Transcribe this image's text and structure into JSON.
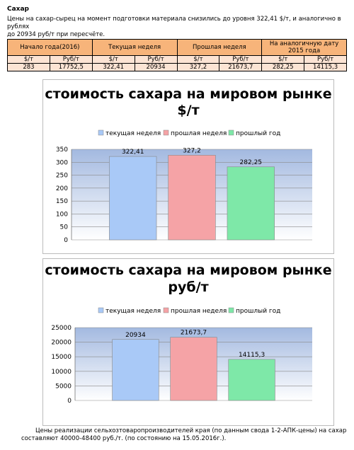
{
  "header": {
    "title": "Сахар",
    "lines": [
      "Цены на сахар-сырец на момент подготовки материала снизились до уровня 322,41 $/т, и аналогично в рублях",
      "до 20934 руб/т при пересчёте."
    ]
  },
  "table": {
    "header": [
      "Начало года(2016)",
      "Текущая неделя",
      "Прошлая неделя",
      "На аналогичную дату 2015 года"
    ],
    "subheader": [
      "$/т",
      "Руб/т",
      "$/т",
      "Руб/т",
      "$/т",
      "Руб/т",
      "$/т",
      "Руб/т"
    ],
    "rows": [
      [
        "283",
        "17752,5",
        "322,41",
        "20934",
        "327,2",
        "21673,7",
        "282,25",
        "14115,3"
      ]
    ]
  },
  "chart_data": [
    {
      "type": "bar",
      "title": "стоимость сахара на мировом рынке",
      "subtitle": "$/т",
      "series": [
        {
          "name": "текущая неделя",
          "color": "#a9c9f7",
          "values": [
            322.41
          ],
          "value_labels": [
            "322,41"
          ]
        },
        {
          "name": "прошлая неделя",
          "color": "#f5a3a6",
          "values": [
            327.2
          ],
          "value_labels": [
            "327,2"
          ]
        },
        {
          "name": "прошлый год",
          "color": "#7ee8a8",
          "values": [
            282.25
          ],
          "value_labels": [
            "282,25"
          ]
        }
      ],
      "ylim": [
        0,
        350
      ],
      "yticks": [
        0,
        50,
        100,
        150,
        200,
        250,
        300,
        350
      ],
      "grid": true,
      "legend": "top"
    },
    {
      "type": "bar",
      "title": "стоимость сахара на мировом рынке",
      "subtitle": "руб/т",
      "series": [
        {
          "name": "текущая неделя",
          "color": "#a9c9f7",
          "values": [
            20934
          ]
        },
        {
          "name": "прошлая неделя",
          "color": "#f5a3a6",
          "values": [
            21673.7
          ],
          "value_labels": [
            "21673,7"
          ]
        },
        {
          "name": "прошлый год",
          "color": "#7ee8a8",
          "values": [
            14115.3
          ],
          "value_labels": [
            "14115,3"
          ]
        }
      ],
      "ylim": [
        0,
        25000
      ],
      "yticks": [
        0,
        5000,
        10000,
        15000,
        20000,
        25000
      ],
      "grid": true,
      "legend": "top"
    }
  ],
  "footer": {
    "lines": [
      "Цены реализации сельхозтоваропроизводителей края (по данным свода 1-2-АПК-цены) на сахар",
      "составляют 40000-48400 руб./т. (по состоянию на 15.05.2016г.)."
    ]
  }
}
